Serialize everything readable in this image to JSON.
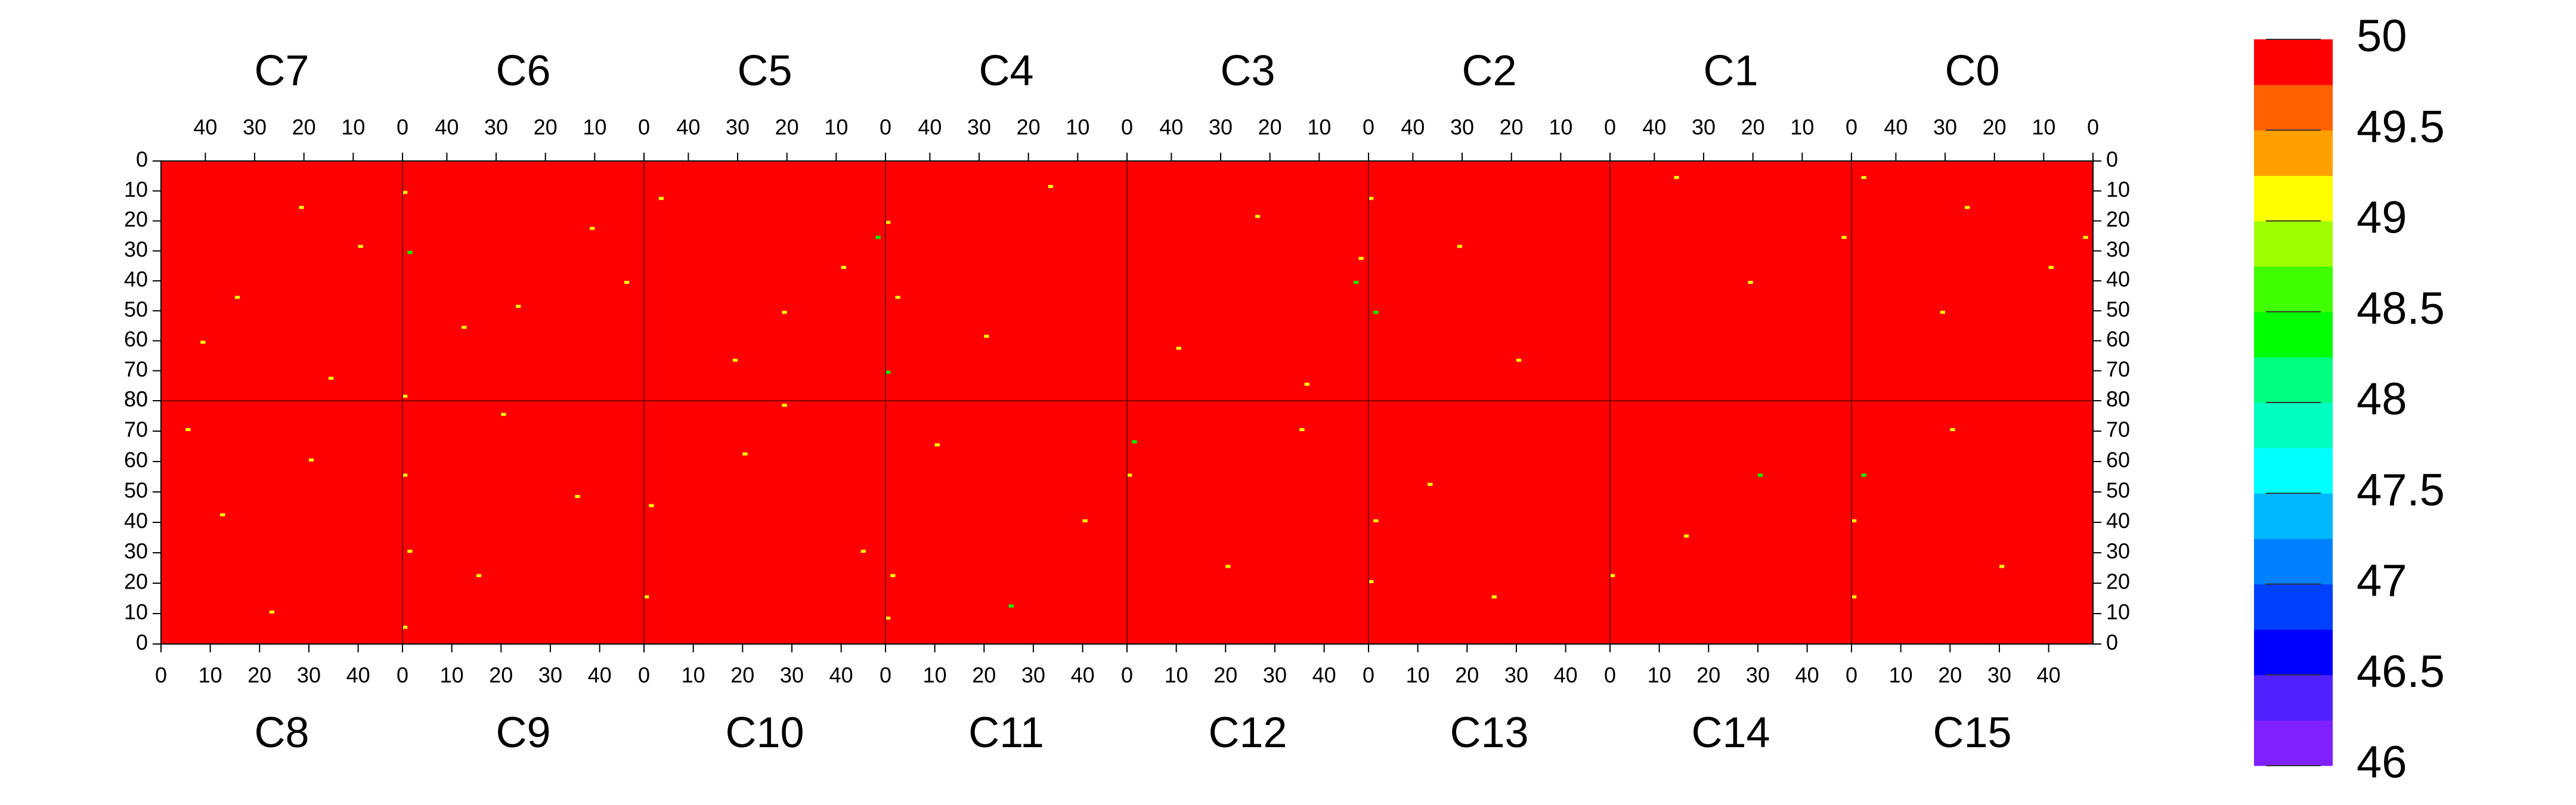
{
  "chart_data": {
    "type": "heatmap",
    "panels": [
      "C7",
      "C6",
      "C5",
      "C4",
      "C3",
      "C2",
      "C1",
      "C0",
      "C8",
      "C9",
      "C10",
      "C11",
      "C12",
      "C13",
      "C14",
      "C15"
    ],
    "xlim": [
      0,
      49
    ],
    "xticks": [
      0,
      10,
      20,
      30,
      40
    ],
    "ylim": [
      0,
      80
    ],
    "yticks": [
      0,
      10,
      20,
      30,
      40,
      50,
      60,
      70,
      80
    ],
    "base_value": 50,
    "cells": [
      [
        0,
        20,
        15,
        49.1
      ],
      [
        0,
        33,
        45,
        49.1
      ],
      [
        0,
        8,
        28,
        49.1
      ],
      [
        0,
        40,
        60,
        49.1
      ],
      [
        0,
        14,
        72,
        49.1
      ],
      [
        1,
        48,
        10,
        49.1
      ],
      [
        1,
        47,
        30,
        48.4
      ],
      [
        1,
        25,
        48,
        49.1
      ],
      [
        1,
        10,
        22,
        49.1
      ],
      [
        1,
        36,
        55,
        49.1
      ],
      [
        1,
        3,
        40,
        49.1
      ],
      [
        1,
        48,
        78,
        49.1
      ],
      [
        2,
        1,
        25,
        48.4
      ],
      [
        2,
        20,
        50,
        49.1
      ],
      [
        2,
        45,
        12,
        49.1
      ],
      [
        2,
        30,
        66,
        49.1
      ],
      [
        2,
        8,
        35,
        49.1
      ],
      [
        3,
        48,
        20,
        49.1
      ],
      [
        3,
        46,
        45,
        49.1
      ],
      [
        3,
        15,
        8,
        49.1
      ],
      [
        3,
        28,
        58,
        49.1
      ],
      [
        3,
        48,
        70,
        48.4
      ],
      [
        4,
        1,
        32,
        49.1
      ],
      [
        4,
        2,
        40,
        48.4
      ],
      [
        4,
        22,
        18,
        49.1
      ],
      [
        4,
        38,
        62,
        49.1
      ],
      [
        4,
        12,
        74,
        49.1
      ],
      [
        5,
        48,
        12,
        49.1
      ],
      [
        5,
        47,
        50,
        48.4
      ],
      [
        5,
        30,
        28,
        49.1
      ],
      [
        5,
        18,
        66,
        49.1
      ],
      [
        6,
        1,
        25,
        49.1
      ],
      [
        6,
        35,
        5,
        49.1
      ],
      [
        6,
        20,
        40,
        49.1
      ],
      [
        7,
        1,
        25,
        49.1
      ],
      [
        7,
        46,
        5,
        49.1
      ],
      [
        7,
        25,
        15,
        49.1
      ],
      [
        7,
        8,
        35,
        49.1
      ],
      [
        7,
        30,
        50,
        49.1
      ],
      [
        8,
        22,
        10,
        49.1
      ],
      [
        8,
        12,
        42,
        49.1
      ],
      [
        8,
        30,
        60,
        49.1
      ],
      [
        8,
        5,
        70,
        49.1
      ],
      [
        9,
        0,
        5,
        49.1
      ],
      [
        9,
        1,
        30,
        49.1
      ],
      [
        9,
        0,
        55,
        49.1
      ],
      [
        9,
        15,
        22,
        49.1
      ],
      [
        9,
        35,
        48,
        49.1
      ],
      [
        9,
        20,
        75,
        49.1
      ],
      [
        10,
        0,
        15,
        49.1
      ],
      [
        10,
        1,
        45,
        49.1
      ],
      [
        10,
        28,
        78,
        49.1
      ],
      [
        10,
        44,
        30,
        49.1
      ],
      [
        10,
        20,
        62,
        49.1
      ],
      [
        11,
        0,
        8,
        49.1
      ],
      [
        11,
        1,
        22,
        49.1
      ],
      [
        11,
        25,
        12,
        48.4
      ],
      [
        11,
        40,
        40,
        49.1
      ],
      [
        11,
        10,
        65,
        49.1
      ],
      [
        12,
        0,
        55,
        49.1
      ],
      [
        12,
        1,
        66,
        48.4
      ],
      [
        12,
        20,
        25,
        49.1
      ],
      [
        12,
        35,
        70,
        49.1
      ],
      [
        13,
        0,
        20,
        49.1
      ],
      [
        13,
        1,
        40,
        49.1
      ],
      [
        13,
        25,
        15,
        49.1
      ],
      [
        13,
        12,
        52,
        49.1
      ],
      [
        14,
        0,
        22,
        49.1
      ],
      [
        14,
        30,
        55,
        48.4
      ],
      [
        14,
        15,
        35,
        49.1
      ],
      [
        15,
        0,
        15,
        49.1
      ],
      [
        15,
        0,
        40,
        49.1
      ],
      [
        15,
        2,
        55,
        48.4
      ],
      [
        15,
        30,
        25,
        49.1
      ],
      [
        15,
        20,
        70,
        49.1
      ]
    ],
    "colorbar": {
      "lim": [
        46,
        50
      ],
      "ticks": [
        46,
        46.5,
        47,
        47.5,
        48,
        48.5,
        49,
        49.5,
        50
      ],
      "colors": [
        "#8020ff",
        "#5020ff",
        "#0000ff",
        "#0040ff",
        "#0080ff",
        "#00b8ff",
        "#00ffff",
        "#00ffc0",
        "#00ff80",
        "#00ff00",
        "#40ff00",
        "#a0ff00",
        "#ffff00",
        "#ffa000",
        "#ff6000",
        "#ff0000"
      ]
    },
    "grid": true
  }
}
